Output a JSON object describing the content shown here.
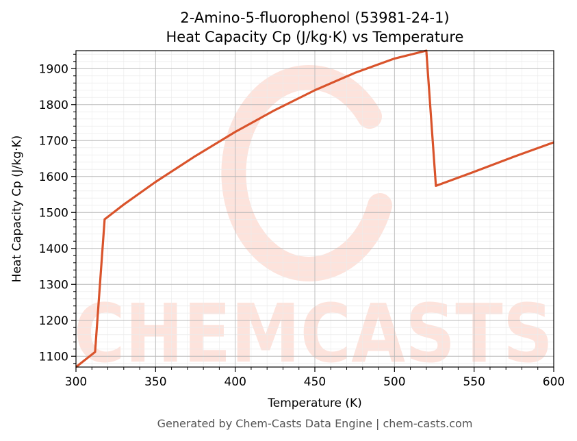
{
  "chart_data": {
    "type": "line",
    "title": "2-Amino-5-fluorophenol (53981-24-1)",
    "subtitle": "Heat Capacity Cp (J/kg·K) vs Temperature",
    "xlabel": "Temperature (K)",
    "ylabel": "Heat Capacity Cp (J/kg·K)",
    "xlim": [
      300,
      600
    ],
    "ylim": [
      1070,
      1950
    ],
    "xticks": [
      300,
      350,
      400,
      450,
      500,
      550,
      600
    ],
    "yticks": [
      1100,
      1200,
      1300,
      1400,
      1500,
      1600,
      1700,
      1800,
      1900
    ],
    "grid": true,
    "legend": null,
    "line_color": "#d9532b",
    "series": [
      {
        "x": [
          300,
          312,
          318,
          330,
          350,
          375,
          400,
          425,
          450,
          475,
          500,
          520,
          526,
          550,
          575,
          600
        ],
        "values": [
          1070,
          1112,
          1481,
          1522,
          1585,
          1657,
          1724,
          1785,
          1840,
          1888,
          1928,
          1950,
          1574,
          1613,
          1655,
          1695
        ]
      }
    ]
  },
  "watermark": {
    "text": "CHEMCASTS",
    "color": "#fde3dc"
  },
  "footer": "Generated by Chem-Casts Data Engine | chem-casts.com"
}
